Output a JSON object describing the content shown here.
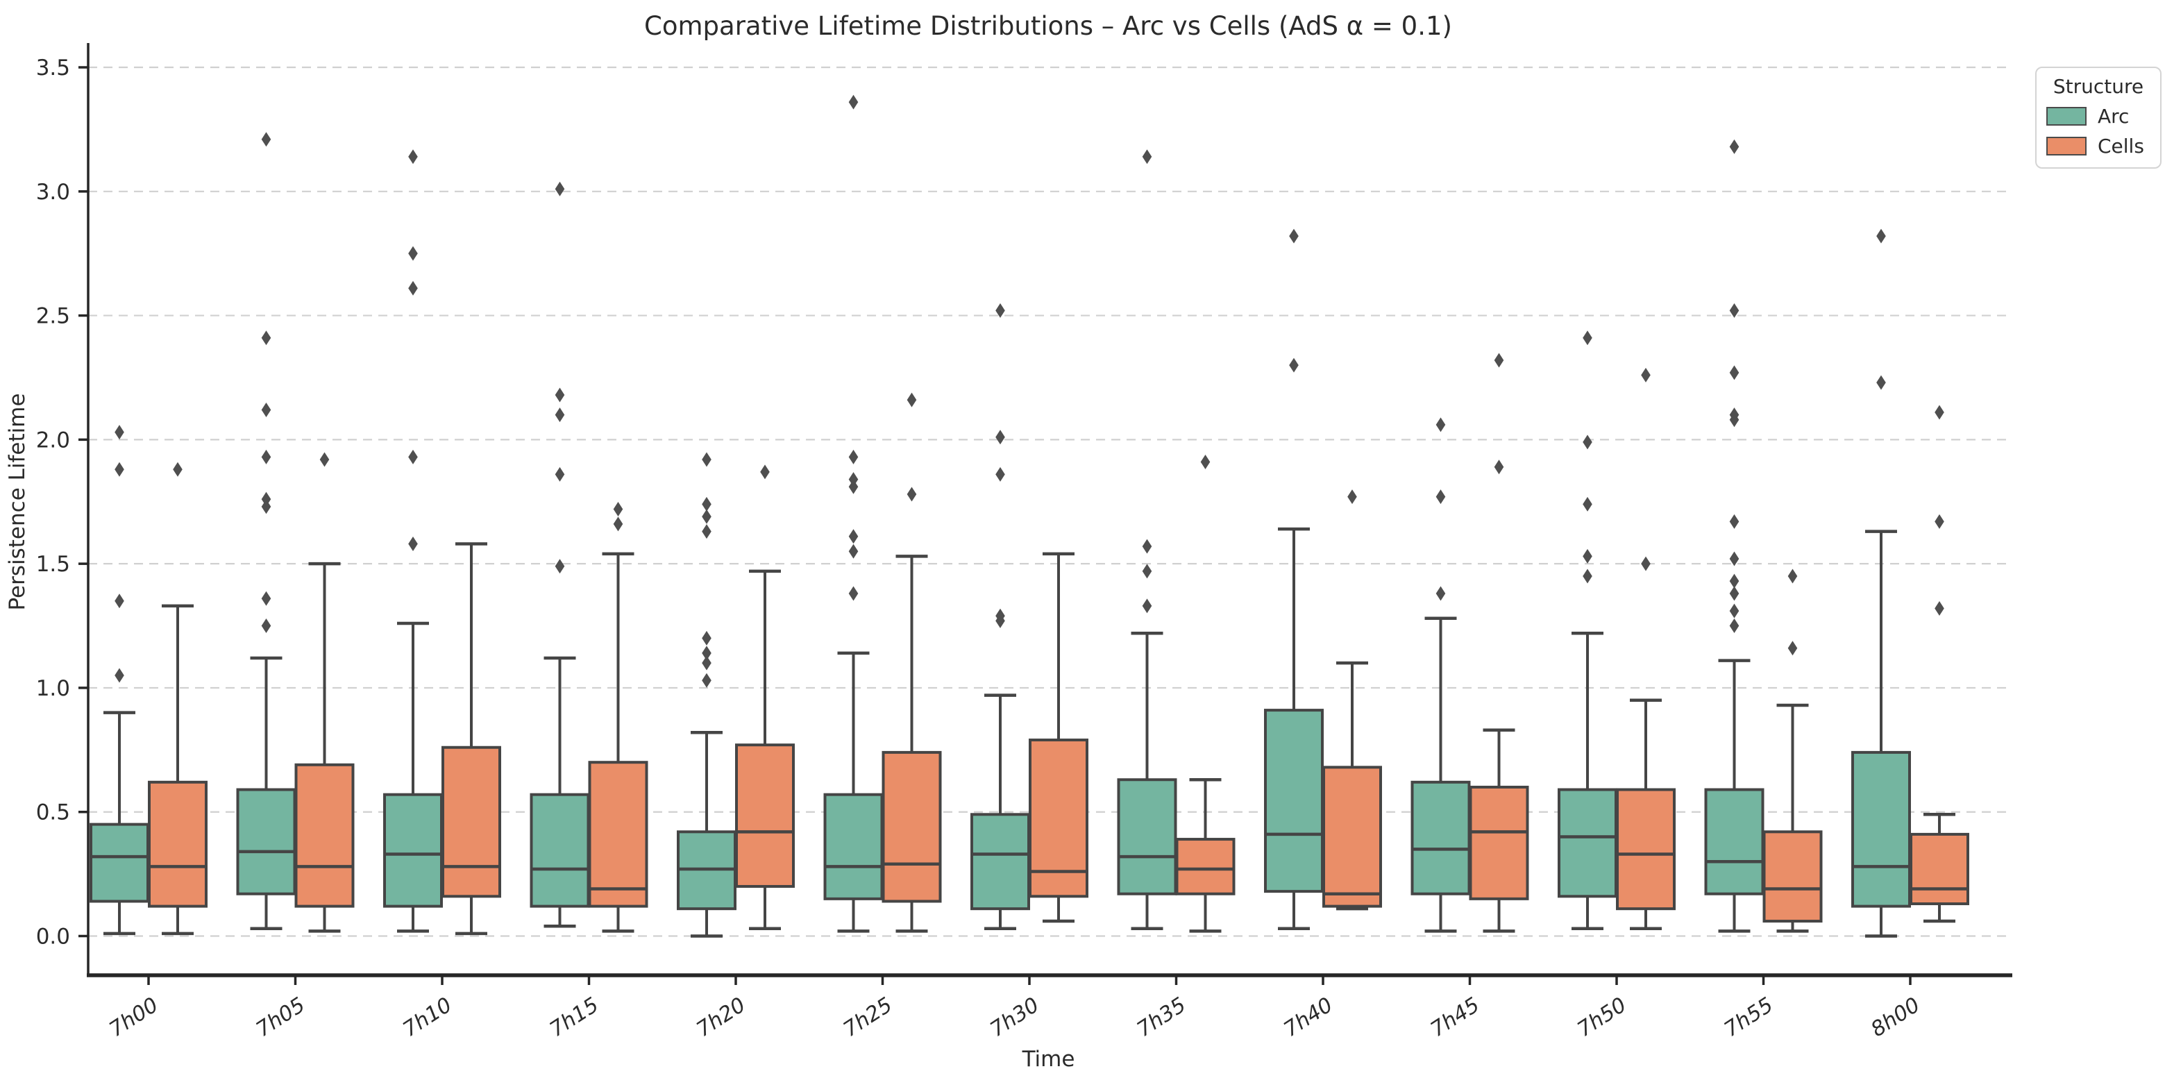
{
  "title": "Comparative Lifetime Distributions – Arc vs Cells (AdS α = 0.1)",
  "axes": {
    "x_label": "Time",
    "y_label": "Persistence Lifetime",
    "y_ticks": [
      0.0,
      0.5,
      1.0,
      1.5,
      2.0,
      2.5,
      3.0,
      3.5
    ],
    "x_tick_labels": [
      "7h00",
      "7h05",
      "7h10",
      "7h15",
      "7h20",
      "7h25",
      "7h30",
      "7h35",
      "7h40",
      "7h45",
      "7h50",
      "7h55",
      "8h00"
    ]
  },
  "legend": {
    "title": "Structure",
    "entries": [
      {
        "label": "Arc",
        "color": "#74b5a0"
      },
      {
        "label": "Cells",
        "color": "#ea8e68"
      }
    ]
  },
  "style": {
    "box_edge_color": "#454545",
    "median_color": "#454545",
    "whisker_color": "#454545",
    "flier_color": "#4f4f4f",
    "grid_color": "#d0d0d0",
    "spine_color": "#262626",
    "arc_fill": "#74b5a0",
    "cells_fill": "#ea8e68"
  },
  "chart_data": {
    "type": "boxplot",
    "title": "Comparative Lifetime Distributions – Arc vs Cells (AdS α = 0.1)",
    "xlabel": "Time",
    "ylabel": "Persistence Lifetime",
    "ylim": [
      -0.16,
      3.55
    ],
    "grid": "horizontal-dashed",
    "legend_position": "outside-top-right",
    "categories": [
      "7h00",
      "7h05",
      "7h10",
      "7h15",
      "7h20",
      "7h25",
      "7h30",
      "7h35",
      "7h40",
      "7h45",
      "7h50",
      "7h55",
      "8h00"
    ],
    "series": [
      {
        "name": "Arc",
        "color": "#74b5a0",
        "boxes": [
          {
            "whisker_low": 0.01,
            "q1": 0.14,
            "median": 0.32,
            "q3": 0.45,
            "whisker_high": 0.9,
            "outliers": [
              1.05,
              1.35,
              1.88,
              2.03
            ]
          },
          {
            "whisker_low": 0.03,
            "q1": 0.17,
            "median": 0.34,
            "q3": 0.59,
            "whisker_high": 1.12,
            "outliers": [
              1.25,
              1.36,
              1.73,
              1.76,
              1.93,
              2.12,
              2.41,
              3.21
            ]
          },
          {
            "whisker_low": 0.02,
            "q1": 0.12,
            "median": 0.33,
            "q3": 0.57,
            "whisker_high": 1.26,
            "outliers": [
              1.58,
              1.93,
              2.61,
              2.75,
              3.14
            ]
          },
          {
            "whisker_low": 0.04,
            "q1": 0.12,
            "median": 0.27,
            "q3": 0.57,
            "whisker_high": 1.12,
            "outliers": [
              1.49,
              1.86,
              2.1,
              2.18,
              3.01
            ]
          },
          {
            "whisker_low": 0.0,
            "q1": 0.11,
            "median": 0.27,
            "q3": 0.42,
            "whisker_high": 0.82,
            "outliers": [
              1.03,
              1.1,
              1.14,
              1.2,
              1.63,
              1.69,
              1.74,
              1.92
            ]
          },
          {
            "whisker_low": 0.02,
            "q1": 0.15,
            "median": 0.28,
            "q3": 0.57,
            "whisker_high": 1.14,
            "outliers": [
              1.38,
              1.55,
              1.61,
              1.81,
              1.84,
              1.93,
              3.36
            ]
          },
          {
            "whisker_low": 0.03,
            "q1": 0.11,
            "median": 0.33,
            "q3": 0.49,
            "whisker_high": 0.97,
            "outliers": [
              1.27,
              1.29,
              1.86,
              2.01,
              2.52
            ]
          },
          {
            "whisker_low": 0.03,
            "q1": 0.17,
            "median": 0.32,
            "q3": 0.63,
            "whisker_high": 1.22,
            "outliers": [
              1.33,
              1.47,
              1.57,
              3.14
            ]
          },
          {
            "whisker_low": 0.03,
            "q1": 0.18,
            "median": 0.41,
            "q3": 0.91,
            "whisker_high": 1.64,
            "outliers": [
              2.3,
              2.82
            ]
          },
          {
            "whisker_low": 0.02,
            "q1": 0.17,
            "median": 0.35,
            "q3": 0.62,
            "whisker_high": 1.28,
            "outliers": [
              1.38,
              1.77,
              2.06
            ]
          },
          {
            "whisker_low": 0.03,
            "q1": 0.16,
            "median": 0.4,
            "q3": 0.59,
            "whisker_high": 1.22,
            "outliers": [
              1.45,
              1.53,
              1.74,
              1.99,
              2.41
            ]
          },
          {
            "whisker_low": 0.02,
            "q1": 0.17,
            "median": 0.3,
            "q3": 0.59,
            "whisker_high": 1.11,
            "outliers": [
              1.25,
              1.31,
              1.38,
              1.43,
              1.52,
              1.67,
              2.08,
              2.1,
              2.27,
              2.52,
              3.18
            ]
          },
          {
            "whisker_low": 0.0,
            "q1": 0.12,
            "median": 0.28,
            "q3": 0.74,
            "whisker_high": 1.63,
            "outliers": [
              2.23,
              2.82
            ]
          }
        ]
      },
      {
        "name": "Cells",
        "color": "#ea8e68",
        "boxes": [
          {
            "whisker_low": 0.01,
            "q1": 0.12,
            "median": 0.28,
            "q3": 0.62,
            "whisker_high": 1.33,
            "outliers": [
              1.88
            ]
          },
          {
            "whisker_low": 0.02,
            "q1": 0.12,
            "median": 0.28,
            "q3": 0.69,
            "whisker_high": 1.5,
            "outliers": [
              1.92
            ]
          },
          {
            "whisker_low": 0.01,
            "q1": 0.16,
            "median": 0.28,
            "q3": 0.76,
            "whisker_high": 1.58,
            "outliers": []
          },
          {
            "whisker_low": 0.02,
            "q1": 0.12,
            "median": 0.19,
            "q3": 0.7,
            "whisker_high": 1.54,
            "outliers": [
              1.66,
              1.72
            ]
          },
          {
            "whisker_low": 0.03,
            "q1": 0.2,
            "median": 0.42,
            "q3": 0.77,
            "whisker_high": 1.47,
            "outliers": [
              1.87
            ]
          },
          {
            "whisker_low": 0.02,
            "q1": 0.14,
            "median": 0.29,
            "q3": 0.74,
            "whisker_high": 1.53,
            "outliers": [
              1.78,
              2.16
            ]
          },
          {
            "whisker_low": 0.06,
            "q1": 0.16,
            "median": 0.26,
            "q3": 0.79,
            "whisker_high": 1.54,
            "outliers": []
          },
          {
            "whisker_low": 0.02,
            "q1": 0.17,
            "median": 0.27,
            "q3": 0.39,
            "whisker_high": 0.63,
            "outliers": [
              1.91
            ]
          },
          {
            "whisker_low": 0.11,
            "q1": 0.12,
            "median": 0.17,
            "q3": 0.68,
            "whisker_high": 1.1,
            "outliers": [
              1.77
            ]
          },
          {
            "whisker_low": 0.02,
            "q1": 0.15,
            "median": 0.42,
            "q3": 0.6,
            "whisker_high": 0.83,
            "outliers": [
              1.89,
              2.32
            ]
          },
          {
            "whisker_low": 0.03,
            "q1": 0.11,
            "median": 0.33,
            "q3": 0.59,
            "whisker_high": 0.95,
            "outliers": [
              1.5,
              2.26
            ]
          },
          {
            "whisker_low": 0.02,
            "q1": 0.06,
            "median": 0.19,
            "q3": 0.42,
            "whisker_high": 0.93,
            "outliers": [
              1.16,
              1.45
            ]
          },
          {
            "whisker_low": 0.06,
            "q1": 0.13,
            "median": 0.19,
            "q3": 0.41,
            "whisker_high": 0.49,
            "outliers": [
              1.32,
              1.67,
              2.11
            ]
          }
        ]
      }
    ]
  }
}
